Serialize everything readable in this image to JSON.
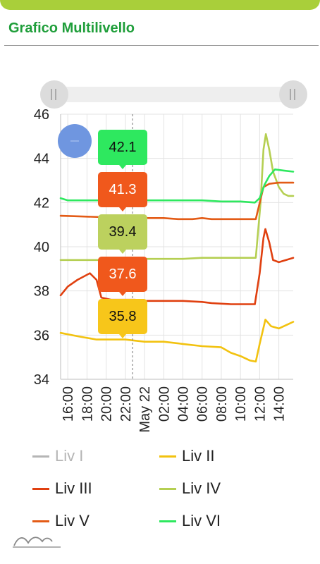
{
  "header": {
    "title": "Grafico Multilivello"
  },
  "colors": {
    "liv1": "#a8a8a8",
    "liv2": "#f2c20f",
    "liv3": "#e04010",
    "liv4": "#b5cf52",
    "liv5": "#e35b16",
    "liv6": "#2ee85f",
    "accent": "#1f9e3a"
  },
  "icons": {
    "range_handle": "drag-grip-icon",
    "cursor_marker": "blue-circle-marker",
    "logo": "mountain-waves-logo"
  },
  "tooltips": [
    {
      "value": "42.1",
      "series": "Liv VI",
      "bg": "#2ee85f",
      "fg": "#111111"
    },
    {
      "value": "41.3",
      "series": "Liv V",
      "bg": "#f0581c",
      "fg": "#ffffff"
    },
    {
      "value": "39.4",
      "series": "Liv IV",
      "bg": "#bcd15e",
      "fg": "#111111"
    },
    {
      "value": "37.6",
      "series": "Liv III",
      "bg": "#f0581c",
      "fg": "#ffffff"
    },
    {
      "value": "35.8",
      "series": "Liv II",
      "bg": "#f7c61a",
      "fg": "#111111"
    }
  ],
  "legend": [
    {
      "label": "Liv I",
      "color": "#a8a8a8",
      "active": false
    },
    {
      "label": "Liv II",
      "color": "#f2c20f",
      "active": true
    },
    {
      "label": "Liv III",
      "color": "#e04010",
      "active": true
    },
    {
      "label": "Liv IV",
      "color": "#b5cf52",
      "active": true
    },
    {
      "label": "Liv V",
      "color": "#e35b16",
      "active": true
    },
    {
      "label": "Liv VI",
      "color": "#2ee85f",
      "active": true
    }
  ],
  "chart_data": {
    "type": "line",
    "title": "",
    "xlabel": "",
    "ylabel": "",
    "ylim": [
      34,
      46
    ],
    "y_ticks": [
      34,
      36,
      38,
      40,
      42,
      44,
      46
    ],
    "x_ticks": [
      "16:00",
      "18:00",
      "20:00",
      "22:00",
      "May 22",
      "02:00",
      "04:00",
      "06:00",
      "08:00",
      "10:00",
      "12:00",
      "14:00"
    ],
    "x_range_hours": [
      15.25,
      39.5
    ],
    "cursor_hour": 22.75,
    "grid": true,
    "legend_position": "bottom",
    "series": [
      {
        "name": "Liv II",
        "color": "#f2c20f",
        "points": [
          [
            15.25,
            36.1
          ],
          [
            17,
            35.95
          ],
          [
            19,
            35.8
          ],
          [
            21,
            35.8
          ],
          [
            22,
            35.8
          ],
          [
            23,
            35.75
          ],
          [
            24,
            35.7
          ],
          [
            26,
            35.7
          ],
          [
            28,
            35.6
          ],
          [
            30,
            35.5
          ],
          [
            32,
            35.45
          ],
          [
            33,
            35.2
          ],
          [
            34,
            35.05
          ],
          [
            35,
            34.85
          ],
          [
            35.6,
            34.8
          ],
          [
            36,
            35.6
          ],
          [
            36.6,
            36.7
          ],
          [
            37.2,
            36.4
          ],
          [
            38,
            36.3
          ],
          [
            39,
            36.5
          ],
          [
            39.5,
            36.6
          ]
        ]
      },
      {
        "name": "Liv III",
        "color": "#e04010",
        "points": [
          [
            15.25,
            37.8
          ],
          [
            16,
            38.2
          ],
          [
            17,
            38.5
          ],
          [
            18.3,
            38.8
          ],
          [
            19,
            38.5
          ],
          [
            19.5,
            37.7
          ],
          [
            20.5,
            37.6
          ],
          [
            22.5,
            37.6
          ],
          [
            23,
            37.6
          ],
          [
            24,
            37.55
          ],
          [
            28,
            37.55
          ],
          [
            30,
            37.5
          ],
          [
            31,
            37.45
          ],
          [
            33,
            37.4
          ],
          [
            35.5,
            37.4
          ],
          [
            36,
            38.8
          ],
          [
            36.4,
            40.4
          ],
          [
            36.6,
            40.8
          ],
          [
            37,
            40.2
          ],
          [
            37.4,
            39.4
          ],
          [
            38,
            39.3
          ],
          [
            39.5,
            39.5
          ]
        ]
      },
      {
        "name": "Liv IV",
        "color": "#b5cf52",
        "points": [
          [
            15.25,
            39.4
          ],
          [
            22,
            39.4
          ],
          [
            24,
            39.45
          ],
          [
            26,
            39.45
          ],
          [
            28,
            39.45
          ],
          [
            30,
            39.5
          ],
          [
            32,
            39.5
          ],
          [
            34,
            39.5
          ],
          [
            35.6,
            39.5
          ],
          [
            36.1,
            42.0
          ],
          [
            36.4,
            44.4
          ],
          [
            36.65,
            45.1
          ],
          [
            37,
            44.4
          ],
          [
            37.4,
            43.4
          ],
          [
            38,
            42.7
          ],
          [
            38.5,
            42.4
          ],
          [
            39,
            42.3
          ],
          [
            39.5,
            42.3
          ]
        ]
      },
      {
        "name": "Liv V",
        "color": "#e35b16",
        "points": [
          [
            15.25,
            41.4
          ],
          [
            22.75,
            41.3
          ],
          [
            24,
            41.3
          ],
          [
            26,
            41.3
          ],
          [
            27.5,
            41.25
          ],
          [
            29,
            41.25
          ],
          [
            30,
            41.3
          ],
          [
            31,
            41.25
          ],
          [
            33,
            41.25
          ],
          [
            35.6,
            41.25
          ],
          [
            36.4,
            42.7
          ],
          [
            37,
            42.85
          ],
          [
            38,
            42.9
          ],
          [
            39.5,
            42.9
          ]
        ]
      },
      {
        "name": "Liv VI",
        "color": "#2ee85f",
        "points": [
          [
            15.25,
            42.2
          ],
          [
            16,
            42.1
          ],
          [
            22.75,
            42.1
          ],
          [
            26,
            42.1
          ],
          [
            30,
            42.1
          ],
          [
            32,
            42.05
          ],
          [
            34,
            42.05
          ],
          [
            35.5,
            42.0
          ],
          [
            36,
            42.2
          ],
          [
            36.5,
            42.8
          ],
          [
            37,
            43.2
          ],
          [
            37.6,
            43.5
          ],
          [
            38.5,
            43.45
          ],
          [
            39.5,
            43.4
          ]
        ]
      }
    ]
  }
}
